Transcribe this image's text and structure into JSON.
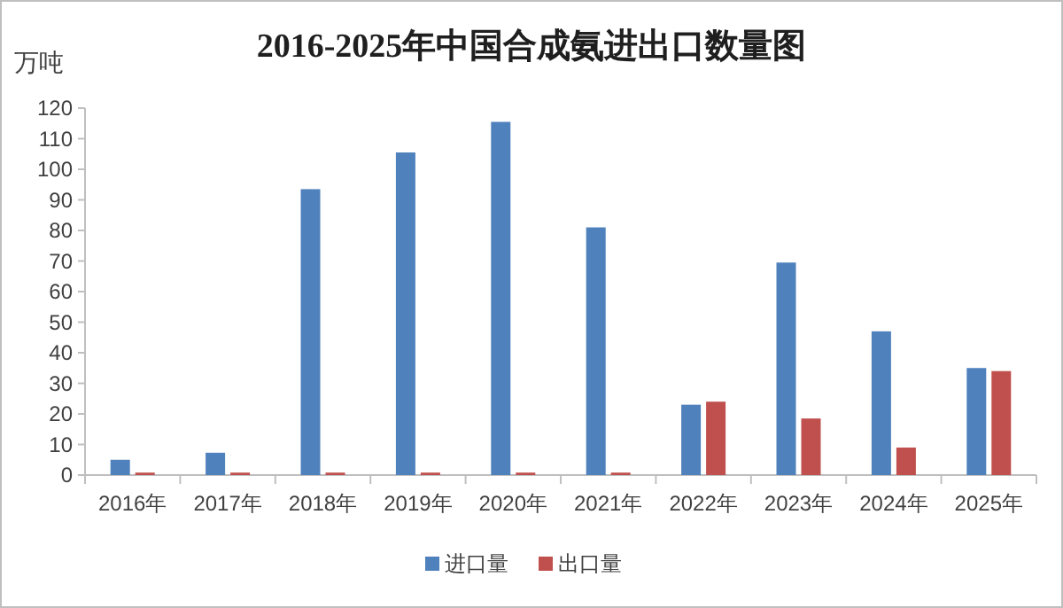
{
  "chart_data": {
    "type": "bar",
    "title": "2016-2025年中国合成氨进出口数量图",
    "ylabel": "万吨",
    "categories": [
      "2016年",
      "2017年",
      "2018年",
      "2019年",
      "2020年",
      "2021年",
      "2022年",
      "2023年",
      "2024年",
      "2025年"
    ],
    "series": [
      {
        "name": "进口量",
        "color": "#4f81bd",
        "values": [
          5,
          7.3,
          93.5,
          105.5,
          115.5,
          81,
          23,
          69.5,
          47,
          35
        ]
      },
      {
        "name": "出口量",
        "color": "#c0504d",
        "values": [
          0.8,
          0.8,
          0.8,
          0.8,
          0.8,
          0.8,
          24,
          18.5,
          9,
          34
        ]
      }
    ],
    "ylim": [
      0,
      120
    ],
    "yticks": [
      0,
      10,
      20,
      30,
      40,
      50,
      60,
      70,
      80,
      90,
      100,
      110,
      120
    ],
    "grid": false,
    "legend": "bottom"
  }
}
